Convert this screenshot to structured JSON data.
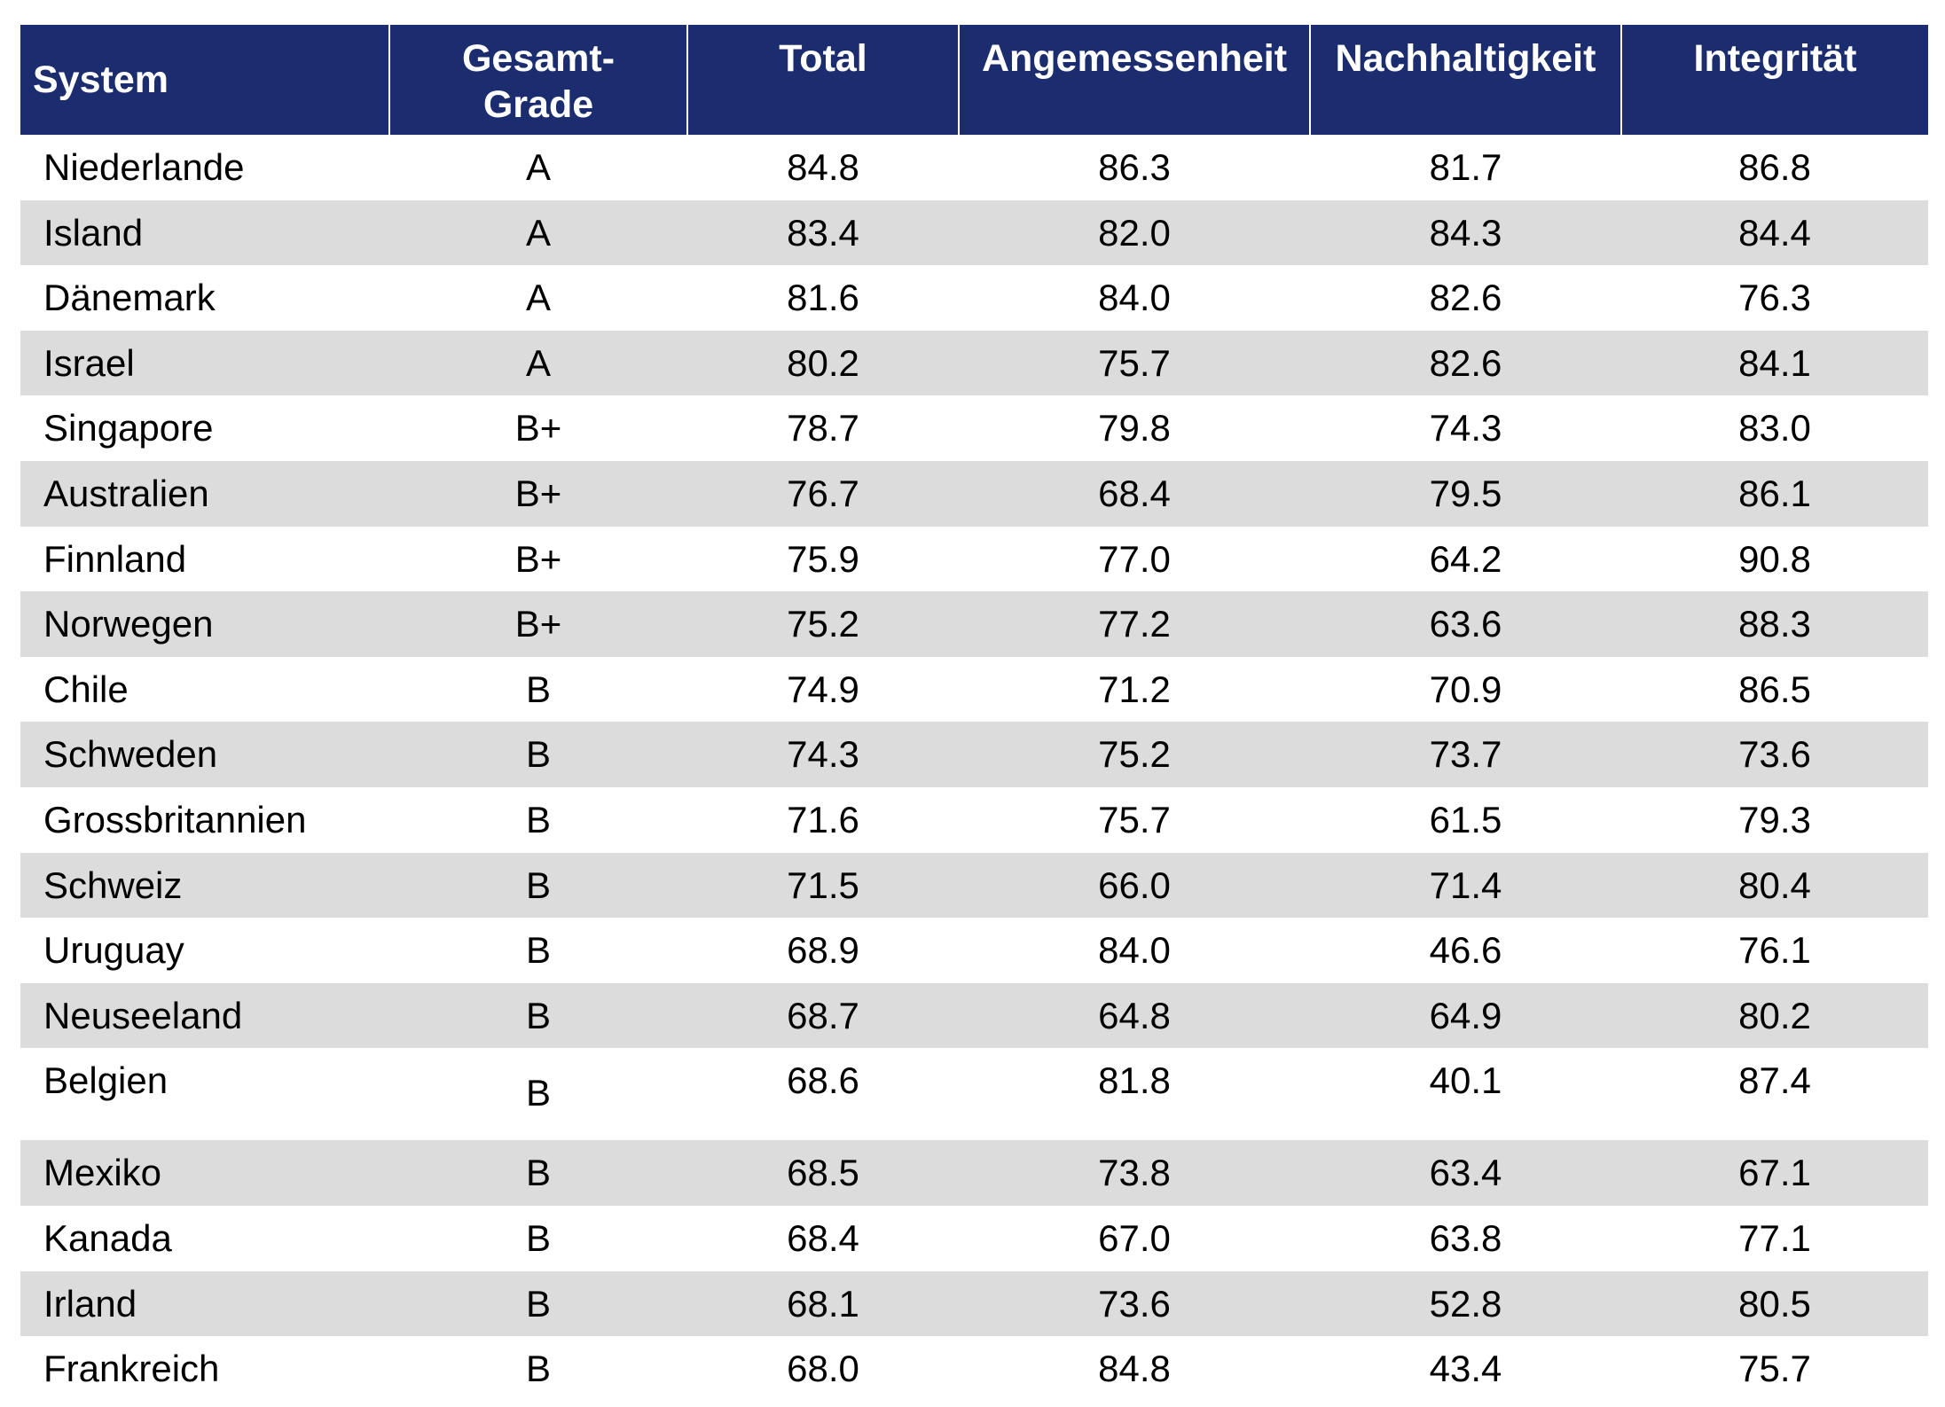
{
  "chart_data": {
    "type": "table",
    "columns": [
      "System",
      "Gesamt-Grade",
      "Total",
      "Angemessenheit",
      "Nachhaltigkeit",
      "Integrität"
    ],
    "header_lines": {
      "grade": [
        "Gesamt-",
        "Grade"
      ]
    },
    "rows": [
      {
        "system": "Niederlande",
        "grade": "A",
        "total": "84.8",
        "angemessenheit": "86.3",
        "nachhaltigkeit": "81.7",
        "integritaet": "86.8"
      },
      {
        "system": "Island",
        "grade": "A",
        "total": "83.4",
        "angemessenheit": "82.0",
        "nachhaltigkeit": "84.3",
        "integritaet": "84.4"
      },
      {
        "system": "Dänemark",
        "grade": "A",
        "total": "81.6",
        "angemessenheit": "84.0",
        "nachhaltigkeit": "82.6",
        "integritaet": "76.3"
      },
      {
        "system": "Israel",
        "grade": "A",
        "total": "80.2",
        "angemessenheit": "75.7",
        "nachhaltigkeit": "82.6",
        "integritaet": "84.1"
      },
      {
        "system": "Singapore",
        "grade": "B+",
        "total": "78.7",
        "angemessenheit": "79.8",
        "nachhaltigkeit": "74.3",
        "integritaet": "83.0"
      },
      {
        "system": "Australien",
        "grade": "B+",
        "total": "76.7",
        "angemessenheit": "68.4",
        "nachhaltigkeit": "79.5",
        "integritaet": "86.1"
      },
      {
        "system": "Finnland",
        "grade": "B+",
        "total": "75.9",
        "angemessenheit": "77.0",
        "nachhaltigkeit": "64.2",
        "integritaet": "90.8"
      },
      {
        "system": "Norwegen",
        "grade": "B+",
        "total": "75.2",
        "angemessenheit": "77.2",
        "nachhaltigkeit": "63.6",
        "integritaet": "88.3"
      },
      {
        "system": "Chile",
        "grade": "B",
        "total": "74.9",
        "angemessenheit": "71.2",
        "nachhaltigkeit": "70.9",
        "integritaet": "86.5"
      },
      {
        "system": "Schweden",
        "grade": "B",
        "total": "74.3",
        "angemessenheit": "75.2",
        "nachhaltigkeit": "73.7",
        "integritaet": "73.6"
      },
      {
        "system": "Grossbritannien",
        "grade": "B",
        "total": "71.6",
        "angemessenheit": "75.7",
        "nachhaltigkeit": "61.5",
        "integritaet": "79.3"
      },
      {
        "system": "Schweiz",
        "grade": "B",
        "total": "71.5",
        "angemessenheit": "66.0",
        "nachhaltigkeit": "71.4",
        "integritaet": "80.4"
      },
      {
        "system": "Uruguay",
        "grade": "B",
        "total": "68.9",
        "angemessenheit": "84.0",
        "nachhaltigkeit": "46.6",
        "integritaet": "76.1"
      },
      {
        "system": "Neuseeland",
        "grade": "B",
        "total": "68.7",
        "angemessenheit": "64.8",
        "nachhaltigkeit": "64.9",
        "integritaet": "80.2"
      },
      {
        "system": "Belgien",
        "grade": "B",
        "total": "68.6",
        "angemessenheit": "81.8",
        "nachhaltigkeit": "40.1",
        "integritaet": "87.4"
      },
      {
        "system": "Mexiko",
        "grade": "B",
        "total": "68.5",
        "angemessenheit": "73.8",
        "nachhaltigkeit": "63.4",
        "integritaet": "67.1"
      },
      {
        "system": "Kanada",
        "grade": "B",
        "total": "68.4",
        "angemessenheit": "67.0",
        "nachhaltigkeit": "63.8",
        "integritaet": "77.1"
      },
      {
        "system": "Irland",
        "grade": "B",
        "total": "68.1",
        "angemessenheit": "73.6",
        "nachhaltigkeit": "52.8",
        "integritaet": "80.5"
      },
      {
        "system": "Frankreich",
        "grade": "B",
        "total": "68.0",
        "angemessenheit": "84.8",
        "nachhaltigkeit": "43.4",
        "integritaet": "75.7"
      }
    ],
    "style": {
      "header_bg": "#1b2c6f",
      "header_text": "#ffffff",
      "stripe_bg": "#dcdcdc",
      "row_bg": "#ffffff"
    }
  }
}
